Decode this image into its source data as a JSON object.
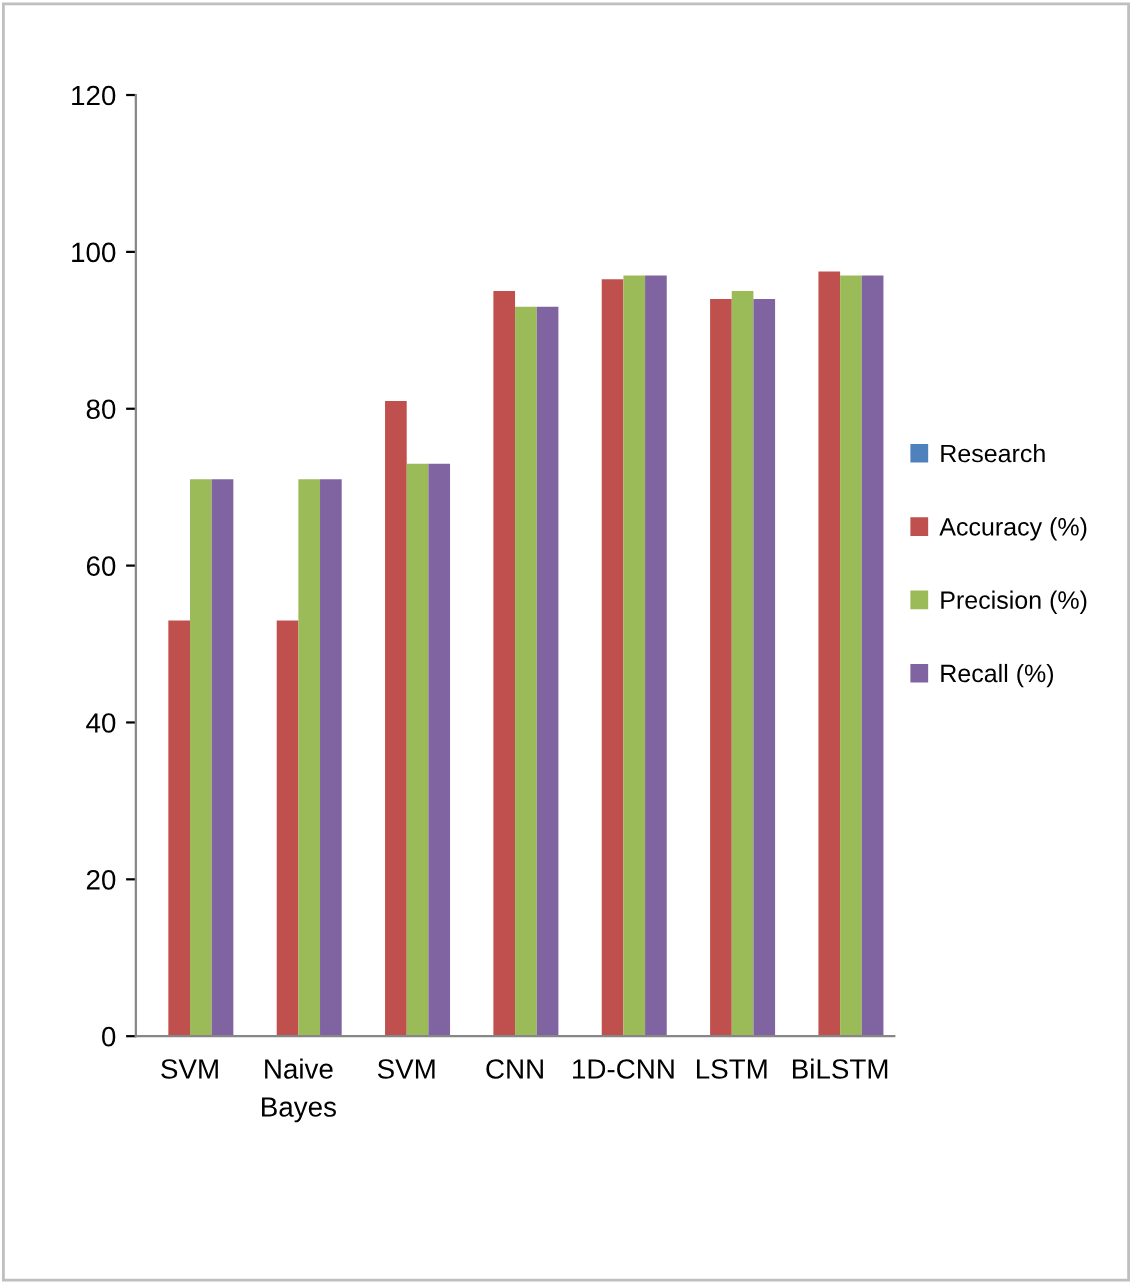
{
  "chart_data": {
    "type": "bar",
    "categories": [
      "SVM",
      "Naive\nBayes",
      "SVM",
      "CNN",
      "1D-CNN",
      "LSTM",
      "BiLSTM"
    ],
    "series": [
      {
        "name": "Research",
        "color": "#4f81bd",
        "values": [
          null,
          null,
          null,
          null,
          null,
          null,
          null
        ]
      },
      {
        "name": "Accuracy (%)",
        "color": "#c0504d",
        "values": [
          53,
          53,
          81,
          95,
          96.5,
          94,
          97.5
        ]
      },
      {
        "name": "Precision (%)",
        "color": "#9bbb59",
        "values": [
          71,
          71,
          73,
          93,
          97,
          95,
          97
        ]
      },
      {
        "name": "Recall (%)",
        "color": "#8064a2",
        "values": [
          71,
          71,
          73,
          93,
          97,
          94,
          97
        ]
      }
    ],
    "ylim": [
      0,
      120
    ],
    "yticks": [
      0,
      20,
      40,
      60,
      80,
      100,
      120
    ],
    "grid": false,
    "legend": "right"
  }
}
